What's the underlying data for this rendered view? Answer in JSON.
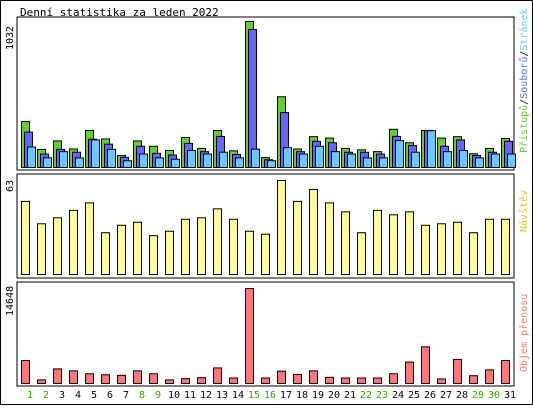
{
  "title": "Denní statistika za leden 2022",
  "colors": {
    "hits": "#66cc33",
    "files": "#6666ff",
    "pages": "#66ccff",
    "visits": "#ffff99",
    "kbytes": "#ff7777",
    "weekend_label": "#33aa00",
    "weekday_label": "#000000",
    "frame": "#000000"
  },
  "chart_data": [
    {
      "type": "bar",
      "name": "top",
      "ymax_label": "1032",
      "legend": [
        "Přístupů",
        "/",
        "Souborů",
        "/",
        "Stránek"
      ],
      "legend_colors": [
        "#66cc33",
        "#000000",
        "#6666ff",
        "#000000",
        "#66ccff"
      ],
      "ylim": [
        0,
        1032
      ],
      "categories": [
        "1",
        "2",
        "3",
        "4",
        "5",
        "6",
        "7",
        "8",
        "9",
        "10",
        "11",
        "12",
        "13",
        "14",
        "15",
        "16",
        "17",
        "18",
        "19",
        "20",
        "21",
        "22",
        "23",
        "24",
        "25",
        "26",
        "27",
        "28",
        "29",
        "30",
        "31"
      ],
      "series": [
        {
          "name": "Přístupů",
          "key": "hits",
          "values": [
            325,
            128,
            188,
            131,
            262,
            202,
            85,
            188,
            150,
            120,
            212,
            135,
            262,
            118,
            1032,
            70,
            500,
            131,
            218,
            208,
            135,
            125,
            112,
            270,
            175,
            262,
            208,
            218,
            97,
            135,
            205
          ]
        },
        {
          "name": "Souborů",
          "key": "files",
          "values": [
            250,
            95,
            128,
            108,
            200,
            165,
            72,
            150,
            100,
            88,
            170,
            112,
            220,
            92,
            975,
            55,
            388,
            112,
            185,
            175,
            108,
            108,
            95,
            220,
            155,
            262,
            150,
            195,
            85,
            108,
            185
          ]
        },
        {
          "name": "Stránek",
          "key": "pages",
          "values": [
            145,
            68,
            112,
            68,
            195,
            128,
            48,
            95,
            68,
            58,
            120,
            95,
            108,
            68,
            130,
            48,
            140,
            95,
            150,
            112,
            95,
            68,
            68,
            190,
            108,
            260,
            112,
            120,
            68,
            95,
            95
          ]
        }
      ]
    },
    {
      "type": "bar",
      "name": "mid",
      "ymax_label": "63",
      "legend": [
        "Návštěv"
      ],
      "legend_colors": [
        "#cccc33"
      ],
      "ylim": [
        0,
        63
      ],
      "series": [
        {
          "name": "Návštěv",
          "key": "visits",
          "values": [
            49,
            34,
            38,
            43,
            48,
            28,
            33,
            35,
            26,
            29,
            37,
            38,
            44,
            37,
            29,
            27,
            63,
            49,
            57,
            48,
            42,
            28,
            43,
            40,
            42,
            33,
            34,
            35,
            28,
            37,
            37
          ]
        }
      ]
    },
    {
      "type": "bar",
      "name": "bottom",
      "ymax_label": "14648",
      "legend": [
        "Objem přenosu"
      ],
      "legend_colors": [
        "#ff7777"
      ],
      "ylim": [
        0,
        14648
      ],
      "series": [
        {
          "name": "Objem přenosu",
          "key": "kbytes",
          "values": [
            3550,
            550,
            2250,
            1950,
            1500,
            1350,
            1250,
            1950,
            1500,
            550,
            750,
            900,
            2400,
            850,
            14648,
            850,
            1900,
            1400,
            1950,
            950,
            850,
            850,
            850,
            1500,
            3300,
            5650,
            700,
            3700,
            1200,
            2100,
            3550
          ]
        }
      ]
    }
  ],
  "x_labels": [
    "1",
    "2",
    "3",
    "4",
    "5",
    "6",
    "7",
    "8",
    "9",
    "10",
    "11",
    "12",
    "13",
    "14",
    "15",
    "16",
    "17",
    "18",
    "19",
    "20",
    "21",
    "22",
    "23",
    "24",
    "25",
    "26",
    "27",
    "28",
    "29",
    "30",
    "31"
  ],
  "weekend_days": [
    1,
    2,
    8,
    9,
    15,
    16,
    22,
    23,
    29,
    30
  ]
}
